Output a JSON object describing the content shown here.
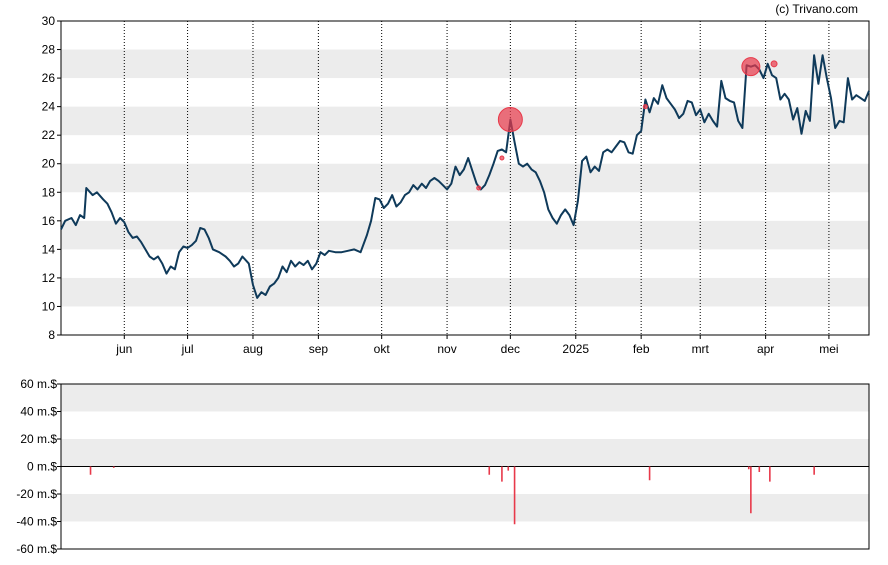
{
  "credit": "(c) Trivano.com",
  "colors": {
    "price_line": "#0f3a5a",
    "band": "#ececec",
    "marker": "#e8394a",
    "volume_bar": "#e8394a"
  },
  "chart_data": [
    {
      "type": "line",
      "title": "",
      "xlabel": "",
      "ylabel": "",
      "ylim": [
        8,
        30
      ],
      "y_ticks": [
        "8",
        "10",
        "12",
        "14",
        "16",
        "18",
        "20",
        "22",
        "24",
        "26",
        "28",
        "30"
      ],
      "x_ticks": [
        {
          "label": "jun",
          "day": 30
        },
        {
          "label": "jul",
          "day": 60
        },
        {
          "label": "aug",
          "day": 91
        },
        {
          "label": "sep",
          "day": 122
        },
        {
          "label": "okt",
          "day": 152
        },
        {
          "label": "nov",
          "day": 183
        },
        {
          "label": "dec",
          "day": 213
        },
        {
          "label": "2025",
          "day": 244
        },
        {
          "label": "feb",
          "day": 275
        },
        {
          "label": "mrt",
          "day": 303
        },
        {
          "label": "apr",
          "day": 334
        },
        {
          "label": "mei",
          "day": 364
        }
      ],
      "grid": "vertical-dotted",
      "series": [
        {
          "values": [
            [
              0,
              15.4
            ],
            [
              2,
              16.0
            ],
            [
              5,
              16.2
            ],
            [
              7,
              15.7
            ],
            [
              9,
              16.4
            ],
            [
              11,
              16.2
            ],
            [
              12,
              18.3
            ],
            [
              15,
              17.8
            ],
            [
              17,
              18.0
            ],
            [
              20,
              17.5
            ],
            [
              22,
              17.2
            ],
            [
              24,
              16.6
            ],
            [
              26,
              15.8
            ],
            [
              28,
              16.2
            ],
            [
              30,
              15.9
            ],
            [
              32,
              15.2
            ],
            [
              34,
              14.8
            ],
            [
              36,
              14.9
            ],
            [
              38,
              14.5
            ],
            [
              40,
              14.0
            ],
            [
              42,
              13.5
            ],
            [
              44,
              13.3
            ],
            [
              46,
              13.5
            ],
            [
              48,
              13.0
            ],
            [
              50,
              12.3
            ],
            [
              52,
              12.8
            ],
            [
              54,
              12.6
            ],
            [
              56,
              13.8
            ],
            [
              58,
              14.2
            ],
            [
              60,
              14.1
            ],
            [
              62,
              14.3
            ],
            [
              64,
              14.6
            ],
            [
              66,
              15.5
            ],
            [
              68,
              15.4
            ],
            [
              70,
              14.8
            ],
            [
              72,
              14.0
            ],
            [
              75,
              13.8
            ],
            [
              78,
              13.5
            ],
            [
              80,
              13.2
            ],
            [
              82,
              12.8
            ],
            [
              84,
              13.0
            ],
            [
              86,
              13.5
            ],
            [
              89,
              13.0
            ],
            [
              91,
              11.5
            ],
            [
              93,
              10.6
            ],
            [
              95,
              11.0
            ],
            [
              97,
              10.8
            ],
            [
              99,
              11.4
            ],
            [
              101,
              11.6
            ],
            [
              103,
              12.0
            ],
            [
              105,
              12.8
            ],
            [
              107,
              12.4
            ],
            [
              109,
              13.2
            ],
            [
              111,
              12.8
            ],
            [
              113,
              13.1
            ],
            [
              115,
              12.9
            ],
            [
              117,
              13.2
            ],
            [
              119,
              12.6
            ],
            [
              121,
              13.0
            ],
            [
              123,
              13.8
            ],
            [
              125,
              13.6
            ],
            [
              127,
              13.9
            ],
            [
              130,
              13.8
            ],
            [
              133,
              13.8
            ],
            [
              136,
              13.9
            ],
            [
              139,
              14.0
            ],
            [
              142,
              13.8
            ],
            [
              145,
              15.0
            ],
            [
              147,
              16.0
            ],
            [
              149,
              17.6
            ],
            [
              151,
              17.5
            ],
            [
              153,
              16.9
            ],
            [
              155,
              17.2
            ],
            [
              157,
              17.8
            ],
            [
              159,
              17.0
            ],
            [
              161,
              17.3
            ],
            [
              163,
              17.8
            ],
            [
              165,
              18.0
            ],
            [
              167,
              18.5
            ],
            [
              169,
              18.2
            ],
            [
              171,
              18.6
            ],
            [
              173,
              18.3
            ],
            [
              175,
              18.8
            ],
            [
              177,
              19.0
            ],
            [
              179,
              18.8
            ],
            [
              181,
              18.5
            ],
            [
              183,
              18.2
            ],
            [
              185,
              18.6
            ],
            [
              187,
              19.8
            ],
            [
              189,
              19.2
            ],
            [
              191,
              19.6
            ],
            [
              193,
              20.4
            ],
            [
              195,
              19.5
            ],
            [
              197,
              18.6
            ],
            [
              199,
              18.2
            ],
            [
              201,
              18.5
            ],
            [
              203,
              19.2
            ],
            [
              205,
              20.0
            ],
            [
              207,
              20.9
            ],
            [
              209,
              21.0
            ],
            [
              211,
              20.8
            ],
            [
              213,
              23.1
            ],
            [
              215,
              21.5
            ],
            [
              217,
              20.0
            ],
            [
              219,
              19.8
            ],
            [
              221,
              20.0
            ],
            [
              223,
              19.6
            ],
            [
              225,
              19.4
            ],
            [
              227,
              18.8
            ],
            [
              229,
              18.0
            ],
            [
              231,
              16.8
            ],
            [
              233,
              16.2
            ],
            [
              235,
              15.8
            ],
            [
              237,
              16.4
            ],
            [
              239,
              16.8
            ],
            [
              241,
              16.4
            ],
            [
              243,
              15.7
            ],
            [
              245,
              17.4
            ],
            [
              247,
              20.2
            ],
            [
              249,
              20.5
            ],
            [
              251,
              19.4
            ],
            [
              253,
              19.8
            ],
            [
              255,
              19.5
            ],
            [
              257,
              20.8
            ],
            [
              259,
              21.0
            ],
            [
              261,
              20.8
            ],
            [
              263,
              21.2
            ],
            [
              265,
              21.6
            ],
            [
              267,
              21.5
            ],
            [
              269,
              20.8
            ],
            [
              271,
              20.7
            ],
            [
              273,
              22.0
            ],
            [
              275,
              22.3
            ],
            [
              277,
              24.5
            ],
            [
              279,
              23.6
            ],
            [
              281,
              24.6
            ],
            [
              283,
              24.2
            ],
            [
              285,
              25.5
            ],
            [
              287,
              24.6
            ],
            [
              289,
              24.2
            ],
            [
              291,
              23.8
            ],
            [
              293,
              23.2
            ],
            [
              295,
              23.5
            ],
            [
              297,
              24.4
            ],
            [
              299,
              24.3
            ],
            [
              301,
              23.4
            ],
            [
              303,
              23.8
            ],
            [
              305,
              22.9
            ],
            [
              307,
              23.5
            ],
            [
              309,
              23.0
            ],
            [
              311,
              22.6
            ],
            [
              313,
              25.8
            ],
            [
              315,
              24.6
            ],
            [
              317,
              24.4
            ],
            [
              319,
              24.3
            ],
            [
              321,
              23.0
            ],
            [
              323,
              22.5
            ],
            [
              325,
              26.9
            ],
            [
              327,
              26.8
            ],
            [
              329,
              26.9
            ],
            [
              331,
              26.6
            ],
            [
              333,
              26.0
            ],
            [
              335,
              27.0
            ],
            [
              337,
              26.2
            ],
            [
              339,
              26.0
            ],
            [
              341,
              24.5
            ],
            [
              343,
              24.9
            ],
            [
              345,
              24.5
            ],
            [
              347,
              23.1
            ],
            [
              349,
              23.9
            ],
            [
              351,
              22.1
            ],
            [
              353,
              23.7
            ],
            [
              355,
              23.0
            ],
            [
              357,
              27.6
            ],
            [
              359,
              25.6
            ],
            [
              361,
              27.6
            ],
            [
              363,
              26.0
            ],
            [
              365,
              24.6
            ],
            [
              367,
              22.5
            ],
            [
              369,
              23.0
            ],
            [
              371,
              22.9
            ],
            [
              373,
              26.0
            ],
            [
              375,
              24.5
            ],
            [
              377,
              24.8
            ],
            [
              379,
              24.6
            ],
            [
              381,
              24.4
            ],
            [
              383,
              25.1
            ]
          ]
        }
      ],
      "markers": [
        {
          "day": 213,
          "value": 23.1,
          "size": "large"
        },
        {
          "day": 327,
          "value": 26.8,
          "size": "medium"
        },
        {
          "day": 338,
          "value": 27.0,
          "size": "small"
        },
        {
          "day": 209,
          "value": 20.4,
          "size": "tiny"
        },
        {
          "day": 277,
          "value": 24.0,
          "size": "tiny"
        },
        {
          "day": 198,
          "value": 18.3,
          "size": "tiny"
        }
      ]
    },
    {
      "type": "bar",
      "title": "",
      "xlabel": "",
      "ylabel": "",
      "ylim": [
        -60,
        60
      ],
      "y_ticks": [
        "60 m.$",
        "40 m.$",
        "20 m.$",
        "0 m.$",
        "-20 m.$",
        "-40 m.$",
        "-60 m.$"
      ],
      "bars": [
        {
          "day": 14,
          "value": -6
        },
        {
          "day": 25,
          "value": -1
        },
        {
          "day": 203,
          "value": -6
        },
        {
          "day": 209,
          "value": -11
        },
        {
          "day": 212,
          "value": -3
        },
        {
          "day": 215,
          "value": -42
        },
        {
          "day": 279,
          "value": -10
        },
        {
          "day": 326,
          "value": -2
        },
        {
          "day": 327,
          "value": -34
        },
        {
          "day": 331,
          "value": -4
        },
        {
          "day": 336,
          "value": -11
        },
        {
          "day": 357,
          "value": -6
        }
      ]
    }
  ]
}
